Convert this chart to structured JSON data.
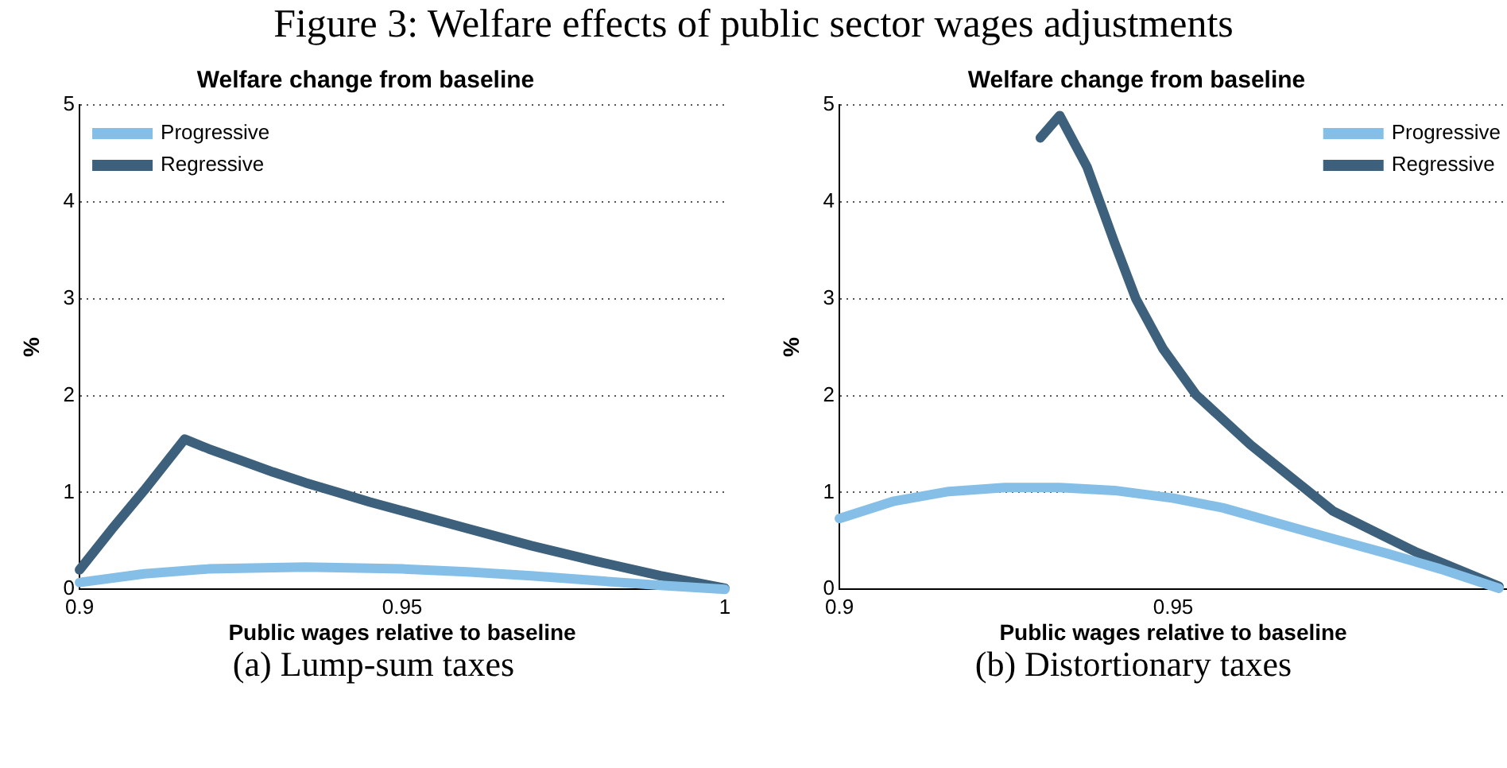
{
  "chart_data": [
    {
      "type": "line",
      "title": "Welfare change from baseline",
      "xlabel": "Public wages relative to baseline",
      "ylabel": "%",
      "annotations": [
        "Figure 3: Welfare effects of public sector wages adjustments",
        "(a) Lump-sum taxes"
      ],
      "xlim": [
        0.9,
        1
      ],
      "xticks": [
        0.9,
        0.95,
        1
      ],
      "ylim": [
        0,
        5
      ],
      "yticks": [
        0,
        1,
        2,
        3,
        4,
        5
      ],
      "grid": "y",
      "legend": "top left",
      "line_style": "solid",
      "marker": "none",
      "series": [
        {
          "name": "Progressive",
          "color": "#85bfe8",
          "x": [
            0.9,
            0.91,
            0.92,
            0.935,
            0.95,
            0.96,
            0.97,
            0.98,
            0.99,
            1.0
          ],
          "values": [
            0.07,
            0.16,
            0.21,
            0.23,
            0.21,
            0.18,
            0.14,
            0.09,
            0.04,
            0.0
          ]
        },
        {
          "name": "Regressive",
          "color": "#3d617c",
          "x": [
            0.9,
            0.905,
            0.91,
            0.9163,
            0.92,
            0.925,
            0.93,
            0.935,
            0.94,
            0.945,
            0.95,
            0.96,
            0.97,
            0.98,
            0.99,
            1.0
          ],
          "values": [
            0.2,
            0.62,
            1.02,
            1.55,
            1.45,
            1.33,
            1.21,
            1.1,
            1.0,
            0.9,
            0.81,
            0.63,
            0.45,
            0.29,
            0.14,
            0.01
          ]
        }
      ]
    },
    {
      "type": "line",
      "title": "Welfare change from baseline",
      "xlabel": "Public wages relative to baseline",
      "ylabel": "%",
      "annotations": [
        "(b) Distortionary taxes"
      ],
      "xlim": [
        0.9,
        1
      ],
      "xticks": [
        0.9,
        0.95
      ],
      "ylim": [
        0,
        5
      ],
      "yticks": [
        0,
        1,
        2,
        3,
        4,
        5
      ],
      "grid": "y",
      "legend": "top right",
      "line_style": "solid",
      "marker": "none",
      "series": [
        {
          "name": "Progressive",
          "color": "#85bfe8",
          "x": [
            0.9,
            0.9082,
            0.9164,
            0.9248,
            0.933,
            0.9412,
            0.95,
            0.9575,
            0.9657,
            0.974,
            0.982,
            0.99,
            0.9988
          ],
          "values": [
            0.73,
            0.91,
            1.01,
            1.05,
            1.05,
            1.02,
            0.94,
            0.84,
            0.68,
            0.52,
            0.37,
            0.21,
            0.01
          ]
        },
        {
          "name": "Regressive",
          "color": "#3d617c",
          "x": [
            0.9301,
            0.933,
            0.9371,
            0.9412,
            0.9444,
            0.9485,
            0.9534,
            0.9616,
            0.9739,
            0.9862,
            0.9988
          ],
          "values": [
            4.66,
            4.89,
            4.36,
            3.58,
            3.0,
            2.48,
            2.01,
            1.49,
            0.81,
            0.39,
            0.03
          ]
        }
      ]
    }
  ]
}
